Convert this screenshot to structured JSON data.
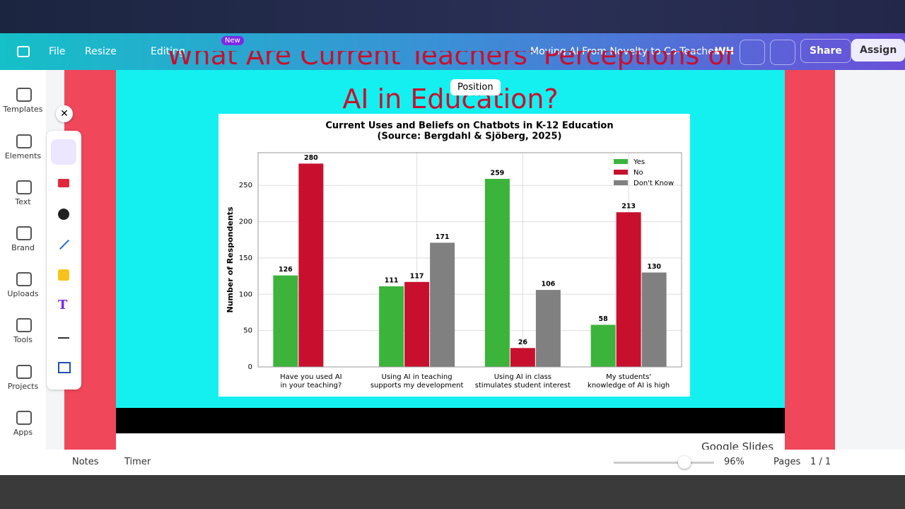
{
  "toolbar": {
    "file": "File",
    "resize": "Resize",
    "editing": "Editing",
    "new_badge": "New",
    "doc_title": "Moving AI From Novelty to Co-Teacher",
    "avatar": "WH",
    "share": "Share",
    "assign": "Assign"
  },
  "sidebar": [
    "Templates",
    "Elements",
    "Text",
    "Brand",
    "Uploads",
    "Tools",
    "Projects",
    "Apps"
  ],
  "slide": {
    "heading": [
      "What Are Current Teachers' Perceptions of",
      "AI in Education?"
    ],
    "tooltip": "Position",
    "presenter_label": "Google Slides"
  },
  "chart_data": {
    "type": "bar",
    "title": "Current Uses and Beliefs on Chatbots in K-12 Education",
    "subtitle": "(Source: Bergdahl & Sjöberg, 2025)",
    "y_label": "Number of Respondents",
    "categories": [
      [
        "Have you used AI",
        "in your teaching?"
      ],
      [
        "Using AI in teaching",
        "supports my development"
      ],
      [
        "Using AI in class",
        "stimulates student interest"
      ],
      [
        "My students'",
        "knowledge of AI is high"
      ]
    ],
    "series": [
      {
        "name": "Yes",
        "color": "#3cb43c",
        "values": [
          126,
          111,
          259,
          58
        ]
      },
      {
        "name": "No",
        "color": "#c8102e",
        "values": [
          280,
          117,
          26,
          213
        ]
      },
      {
        "name": "Don't Know",
        "color": "#808080",
        "values": [
          null,
          171,
          106,
          130
        ]
      }
    ],
    "ylim": [
      0,
      295
    ],
    "yticks": [
      0,
      50,
      100,
      150,
      200,
      250
    ],
    "grid": true,
    "legend": "upper right"
  },
  "footer": {
    "notes": "Notes",
    "timer": "Timer",
    "zoom": "96%",
    "pages": "Pages",
    "page_count": "1 / 1"
  }
}
